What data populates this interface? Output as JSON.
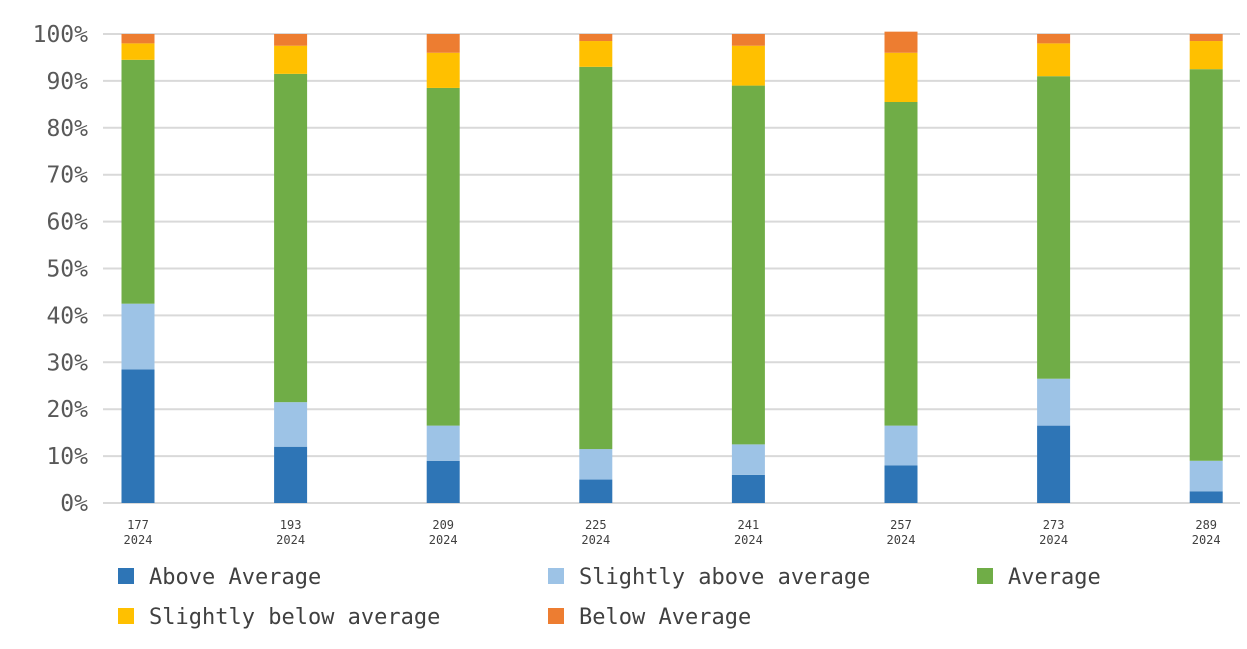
{
  "chart_data": {
    "type": "bar",
    "stacked": true,
    "normalized": true,
    "categories": [
      [
        "177",
        "2024"
      ],
      [
        "193",
        "2024"
      ],
      [
        "209",
        "2024"
      ],
      [
        "225",
        "2024"
      ],
      [
        "241",
        "2024"
      ],
      [
        "257",
        "2024"
      ],
      [
        "273",
        "2024"
      ],
      [
        "289",
        "2024"
      ]
    ],
    "y_ticks": [
      "0%",
      "10%",
      "20%",
      "30%",
      "40%",
      "50%",
      "60%",
      "70%",
      "80%",
      "90%",
      "100%"
    ],
    "ylim": [
      0,
      100
    ],
    "grid": true,
    "legend_position": "bottom",
    "series": [
      {
        "name": "Above Average",
        "color": "#2e75b6",
        "values": [
          28.5,
          12,
          9,
          5,
          6,
          8,
          16.5,
          2.5
        ]
      },
      {
        "name": "Slightly above average",
        "color": "#9dc3e6",
        "values": [
          14,
          9.5,
          7.5,
          6.5,
          6.5,
          8.5,
          10,
          6.5
        ]
      },
      {
        "name": "Average",
        "color": "#70ad47",
        "values": [
          52,
          70,
          72,
          81.5,
          76.5,
          69,
          64.5,
          83.5
        ]
      },
      {
        "name": "Slightly below average",
        "color": "#ffc000",
        "values": [
          3.5,
          6,
          7.5,
          5.5,
          8.5,
          10.5,
          7,
          6
        ]
      },
      {
        "name": "Below Average",
        "color": "#ed7d31",
        "values": [
          2,
          2.5,
          4,
          1.5,
          2.5,
          4.5,
          2,
          1.5
        ]
      }
    ]
  }
}
